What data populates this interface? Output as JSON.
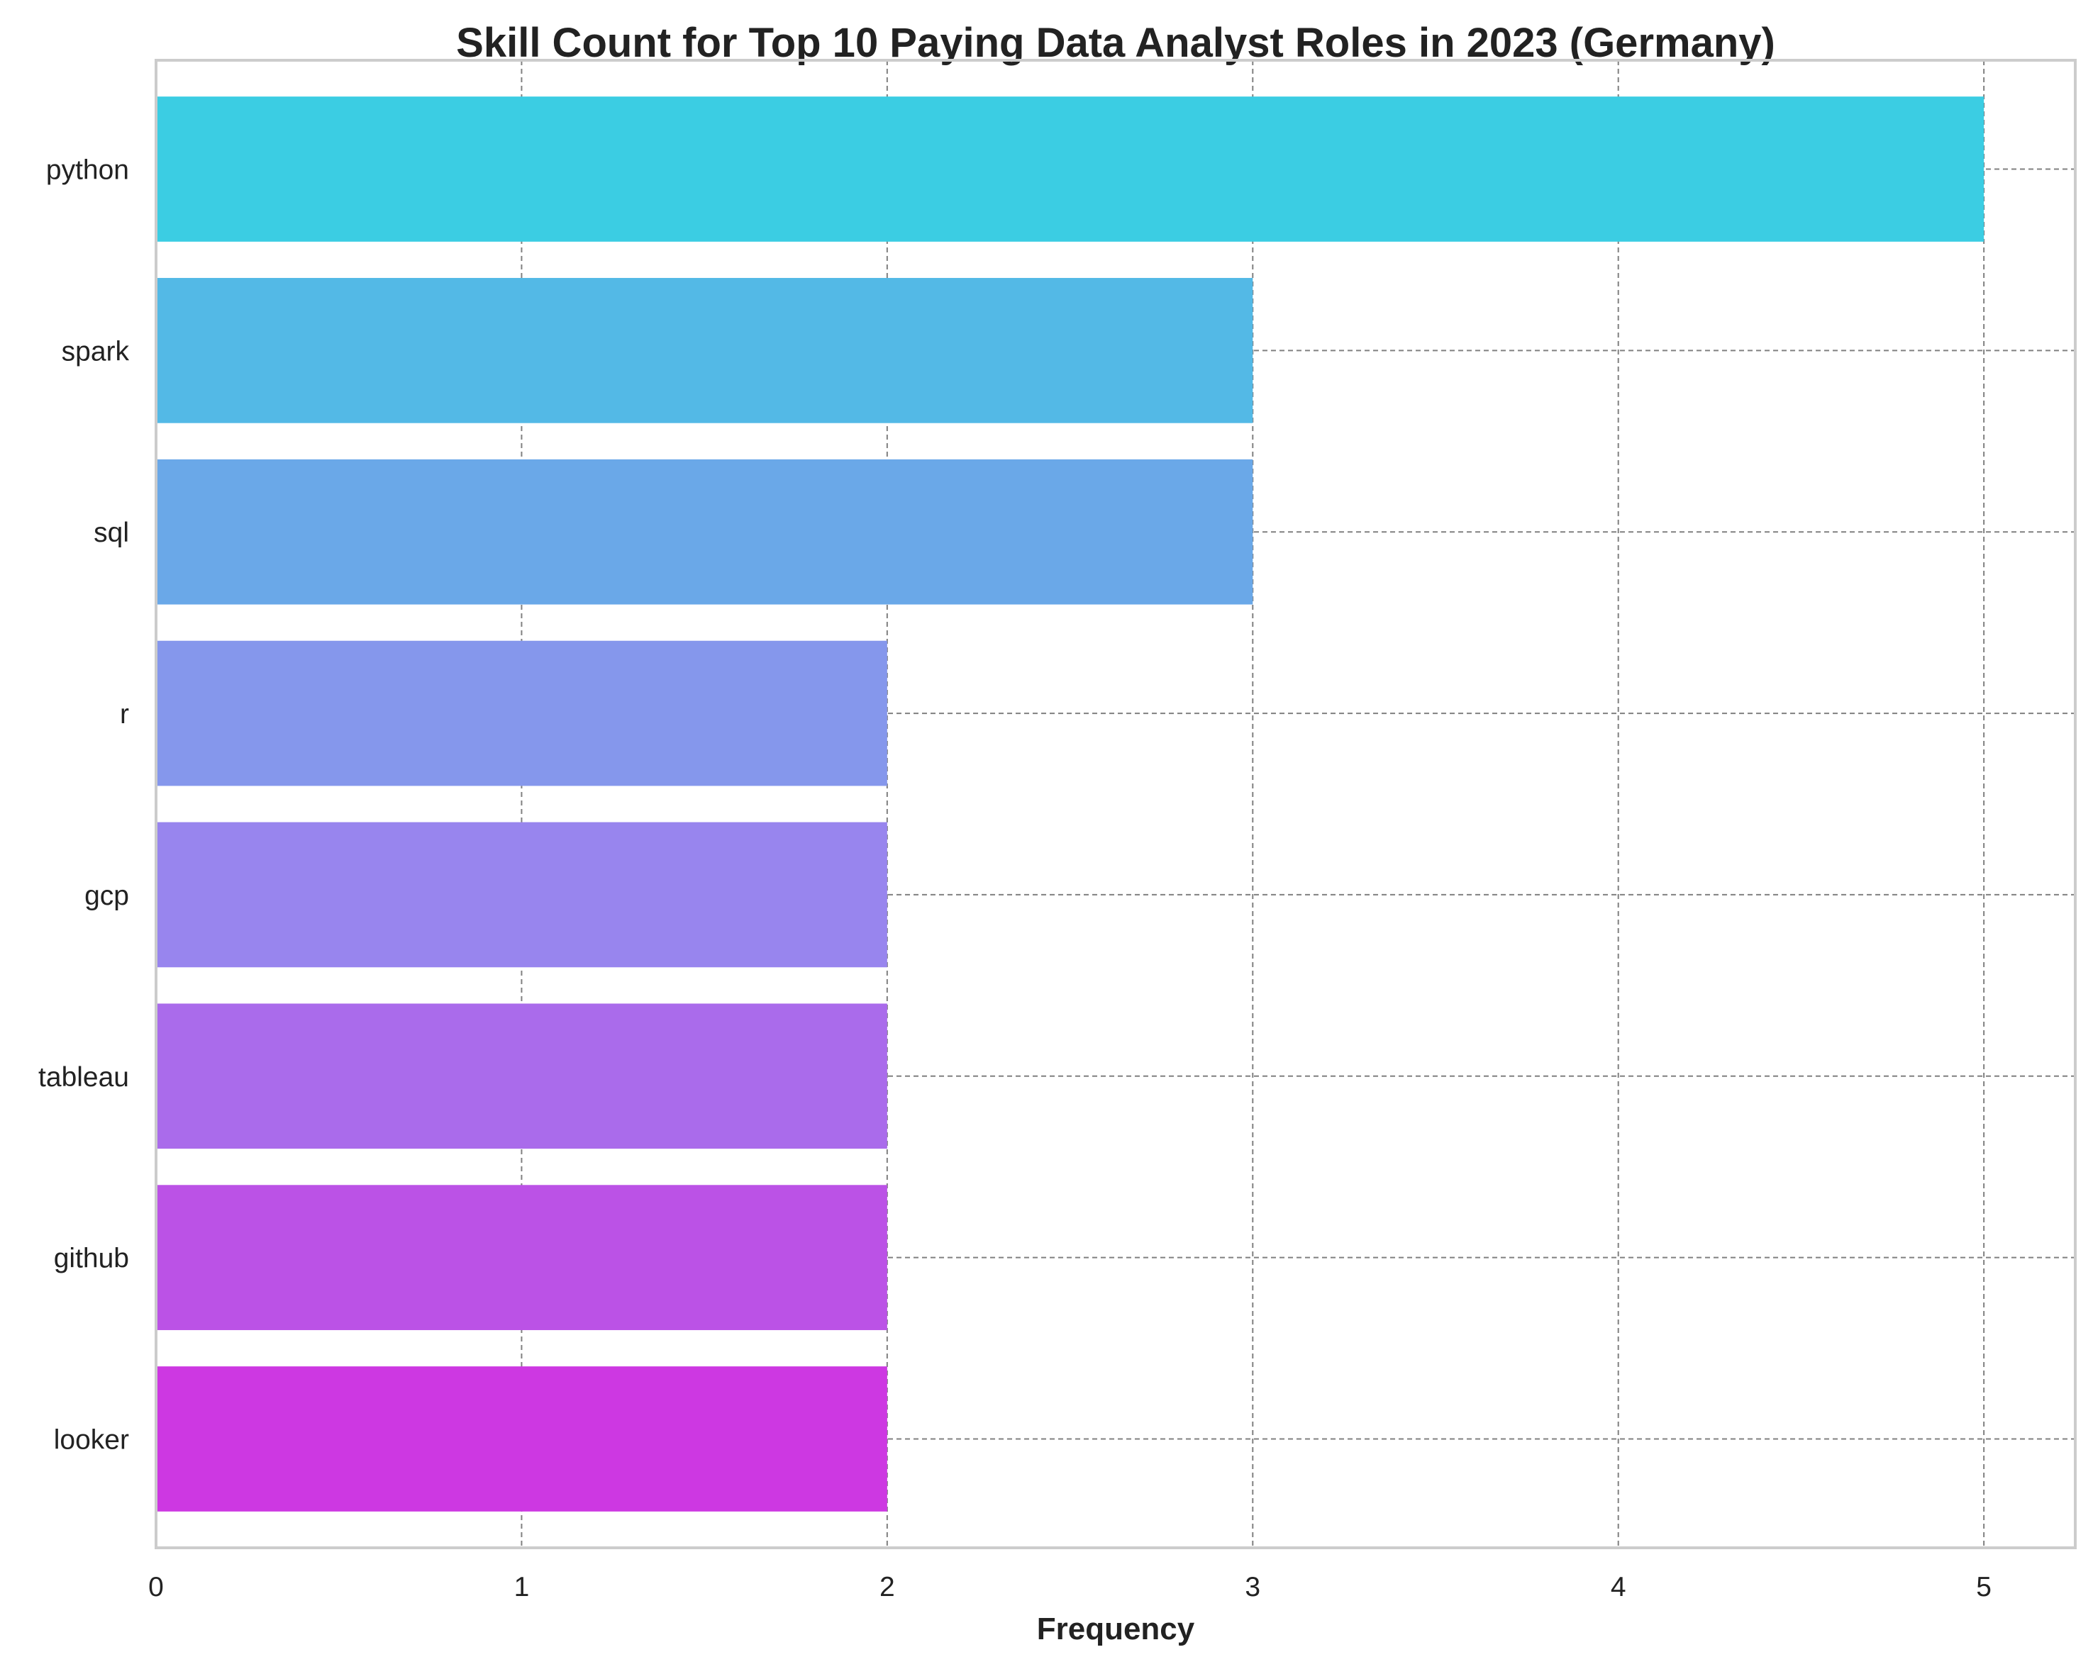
{
  "chart_data": {
    "type": "bar",
    "orientation": "horizontal",
    "title": "Skill Count for Top 10 Paying Data Analyst Roles in 2023 (Germany)",
    "xlabel": "Frequency",
    "ylabel": "",
    "categories": [
      "python",
      "spark",
      "sql",
      "r",
      "gcp",
      "tableau",
      "github",
      "looker"
    ],
    "values": [
      5,
      3,
      3,
      2,
      2,
      2,
      2,
      2
    ],
    "colors": [
      "#3bcde3",
      "#53b9e6",
      "#6aa8e8",
      "#8597ec",
      "#9885ee",
      "#aa6beb",
      "#bb52e6",
      "#cd38e2"
    ],
    "xticks": [
      "0",
      "1",
      "2",
      "3",
      "4",
      "5"
    ],
    "xlim": [
      0,
      5.25
    ],
    "grid": true,
    "legend": "none"
  }
}
